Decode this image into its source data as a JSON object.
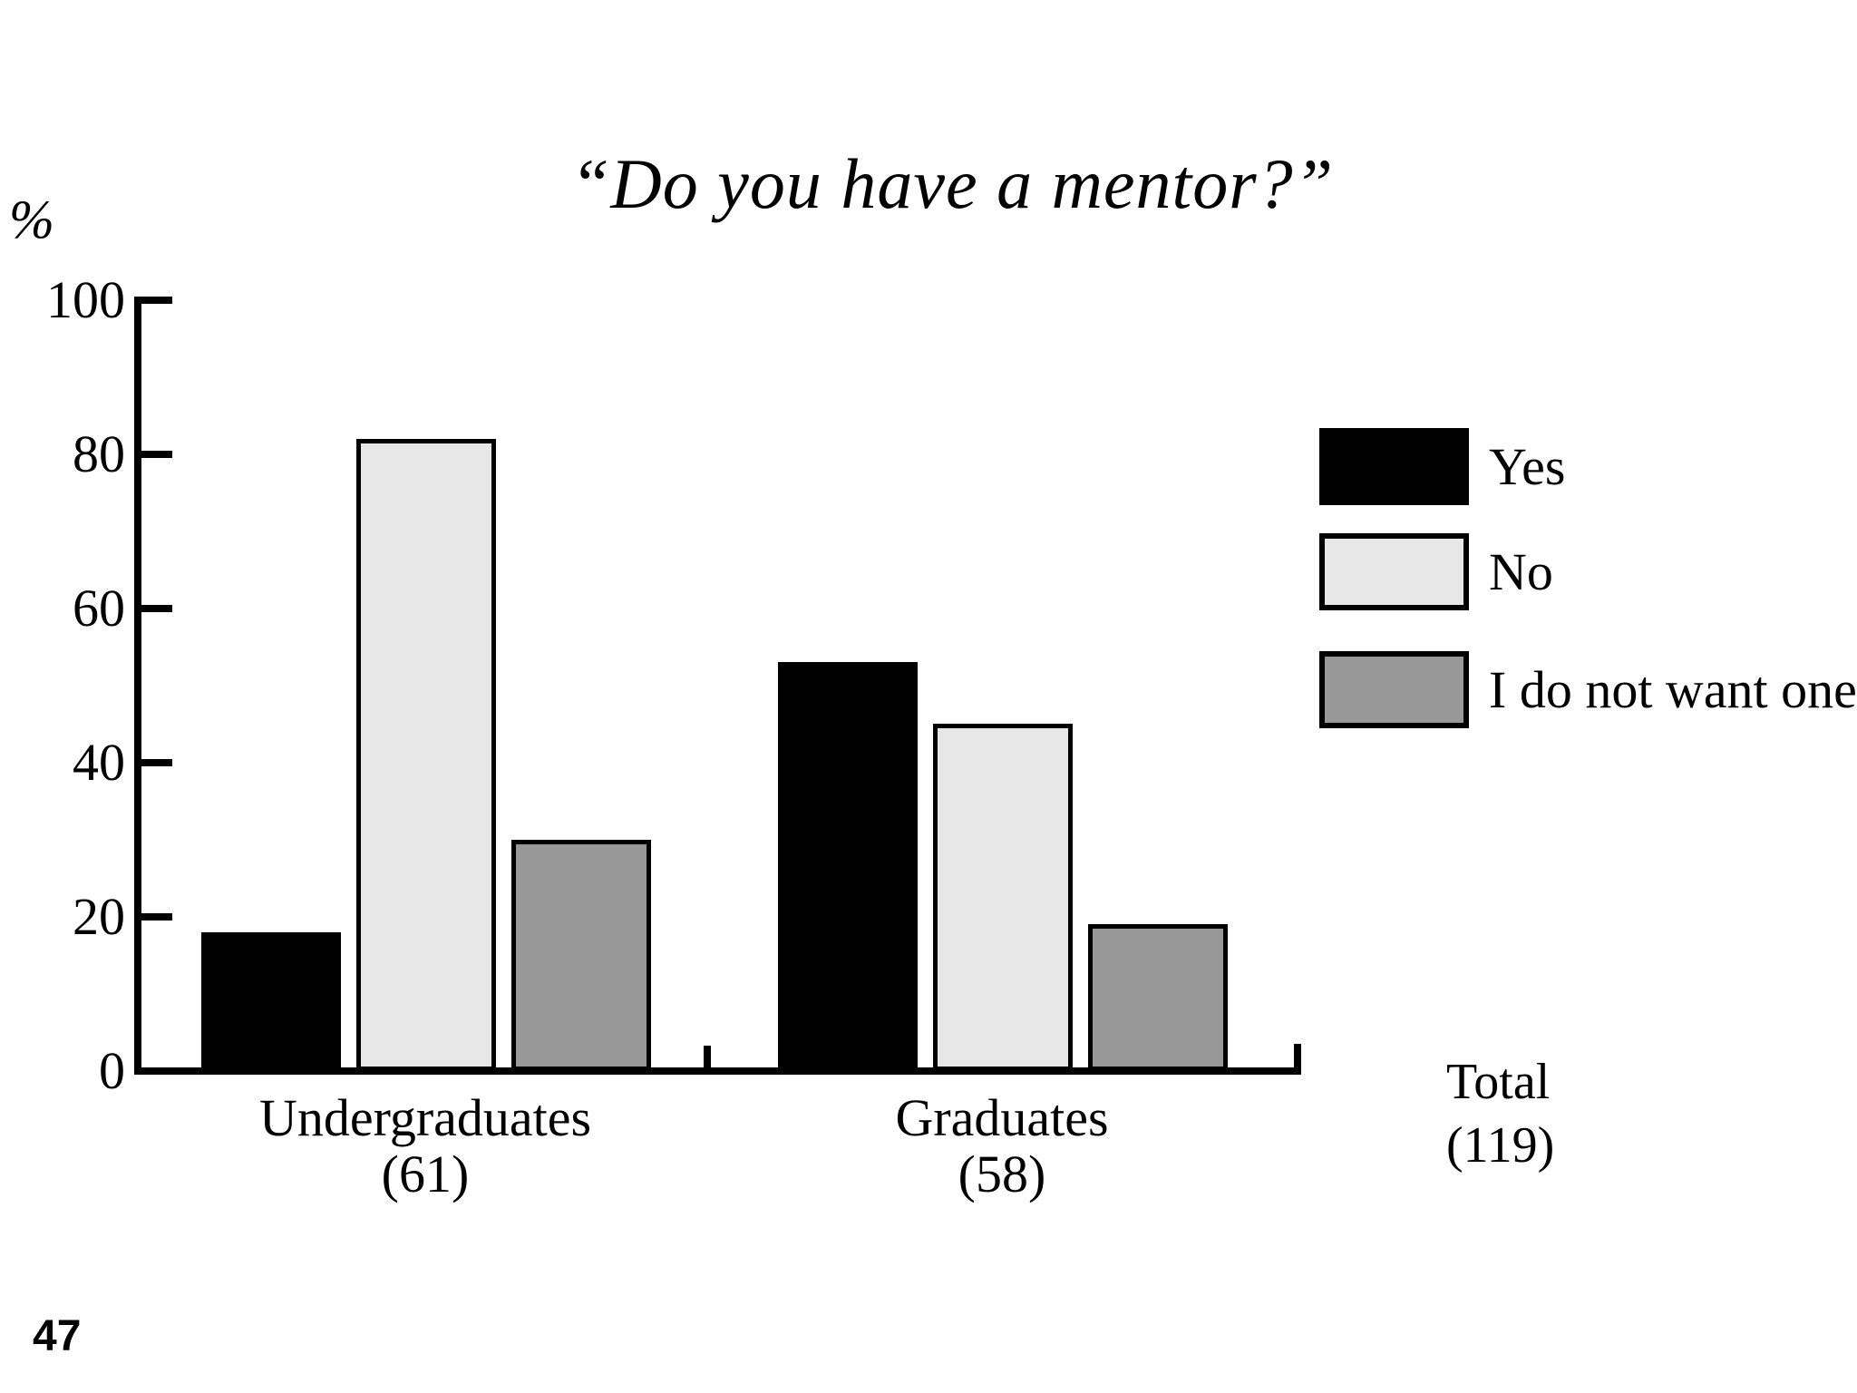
{
  "page_number": "47",
  "title": "“Do you have a mentor?”",
  "chart_data": {
    "type": "bar",
    "title": "“Do you have a mentor?”",
    "ylabel": "%",
    "ylim": [
      0,
      100
    ],
    "yticks": [
      0,
      20,
      40,
      60,
      80,
      100
    ],
    "grid": false,
    "legend_position": "right",
    "categories": [
      "Undergraduates (61)",
      "Graduates (58)"
    ],
    "series": [
      {
        "name": "Yes",
        "color": "#000000",
        "values": [
          18,
          53
        ]
      },
      {
        "name": "No",
        "color": "#e7e7e7",
        "values": [
          82,
          45
        ]
      },
      {
        "name": "I do not want one",
        "color": "#989898",
        "values": [
          30,
          19
        ]
      }
    ]
  },
  "groups": [
    {
      "label": "Undergraduates",
      "count": "(61)"
    },
    {
      "label": "Graduates",
      "count": "(58)"
    }
  ],
  "legend": {
    "items": [
      {
        "label": "Yes",
        "color": "#000000"
      },
      {
        "label": "No",
        "color": "#e7e7e7"
      },
      {
        "label": "I do not want one",
        "color": "#989898"
      }
    ]
  },
  "total": {
    "label": "Total",
    "count": "(119)"
  }
}
